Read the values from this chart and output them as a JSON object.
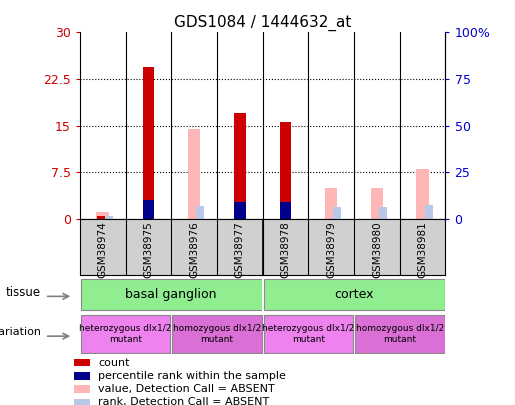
{
  "title": "GDS1084 / 1444632_at",
  "samples": [
    "GSM38974",
    "GSM38975",
    "GSM38976",
    "GSM38977",
    "GSM38978",
    "GSM38979",
    "GSM38980",
    "GSM38981"
  ],
  "count_values": [
    0.4,
    24.5,
    0,
    17.0,
    15.5,
    0,
    0,
    0
  ],
  "rank_values": [
    0,
    10.0,
    0,
    9.0,
    9.0,
    0,
    0,
    0
  ],
  "absent_value": [
    1.0,
    0,
    14.5,
    0,
    0,
    5.0,
    5.0,
    8.0
  ],
  "absent_rank": [
    1.2,
    0,
    7.0,
    0,
    0,
    6.5,
    6.5,
    7.5
  ],
  "left_ylim": [
    0,
    30
  ],
  "right_ylim": [
    0,
    100
  ],
  "left_yticks": [
    0,
    7.5,
    15,
    22.5,
    30
  ],
  "right_yticks": [
    0,
    25,
    50,
    75,
    100
  ],
  "left_yticklabels": [
    "0",
    "7.5",
    "15",
    "22.5",
    "30"
  ],
  "right_yticklabels": [
    "0",
    "25",
    "50",
    "75",
    "100%"
  ],
  "tissue_groups": [
    {
      "label": "basal ganglion",
      "start": 0,
      "end": 4,
      "color": "#90ee90"
    },
    {
      "label": "cortex",
      "start": 4,
      "end": 8,
      "color": "#90ee90"
    }
  ],
  "genotype_groups": [
    {
      "label": "heterozygous dlx1/2\nmutant",
      "start": 0,
      "end": 2,
      "color": "#ee82ee"
    },
    {
      "label": "homozygous dlx1/2\nmutant",
      "start": 2,
      "end": 4,
      "color": "#da70d6"
    },
    {
      "label": "heterozygous dlx1/2\nmutant",
      "start": 4,
      "end": 6,
      "color": "#ee82ee"
    },
    {
      "label": "homozygous dlx1/2\nmutant",
      "start": 6,
      "end": 8,
      "color": "#da70d6"
    }
  ],
  "count_color": "#cc0000",
  "rank_color": "#00008b",
  "absent_value_color": "#ffb6b6",
  "absent_rank_color": "#b8c8e8",
  "bar_width": 0.25,
  "title_fontsize": 11,
  "tick_color_left": "#cc0000",
  "tick_color_right": "#0000cc",
  "grid_yticks": [
    7.5,
    15,
    22.5
  ],
  "xtick_area_color": "#d0d0d0",
  "tissue_divider": 4,
  "legend_items": [
    {
      "color": "#cc0000",
      "label": "count"
    },
    {
      "color": "#00008b",
      "label": "percentile rank within the sample"
    },
    {
      "color": "#ffb6b6",
      "label": "value, Detection Call = ABSENT"
    },
    {
      "color": "#b8c8e8",
      "label": "rank, Detection Call = ABSENT"
    }
  ]
}
